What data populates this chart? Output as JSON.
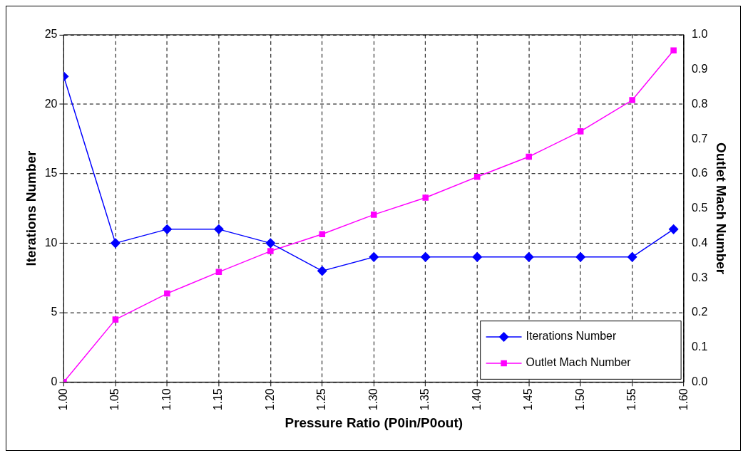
{
  "chart_data": {
    "type": "line",
    "xlabel": "Pressure Ratio (P0in/P0out)",
    "ylabel": "Iterations Number",
    "y2label": "Outlet Mach Number",
    "x": [
      1.0,
      1.05,
      1.1,
      1.15,
      1.2,
      1.25,
      1.3,
      1.35,
      1.4,
      1.45,
      1.5,
      1.55,
      1.59
    ],
    "series": [
      {
        "name": "Iterations Number",
        "color": "#0000ff",
        "marker": "diamond",
        "values": [
          22,
          10,
          11,
          11,
          10,
          8,
          9,
          9,
          9,
          9,
          9,
          9,
          11
        ]
      },
      {
        "name": "Outlet Mach Number",
        "color": "#ff00ff",
        "marker": "square",
        "axis": "y2",
        "values": [
          0,
          0.18,
          0.255,
          0.317,
          0.377,
          0.426,
          0.482,
          0.531,
          0.591,
          0.649,
          0.722,
          0.812,
          0.955
        ]
      }
    ],
    "xlim": [
      1.0,
      1.6
    ],
    "xticks": [
      {
        "value": 1.0,
        "label": "1.00"
      },
      {
        "value": 1.05,
        "label": "1.05"
      },
      {
        "value": 1.1,
        "label": "1.10"
      },
      {
        "value": 1.15,
        "label": "1.15"
      },
      {
        "value": 1.2,
        "label": "1.20"
      },
      {
        "value": 1.25,
        "label": "1.25"
      },
      {
        "value": 1.3,
        "label": "1.30"
      },
      {
        "value": 1.35,
        "label": "1.35"
      },
      {
        "value": 1.4,
        "label": "1.40"
      },
      {
        "value": 1.45,
        "label": "1.45"
      },
      {
        "value": 1.5,
        "label": "1.50"
      },
      {
        "value": 1.55,
        "label": "1.55"
      },
      {
        "value": 1.6,
        "label": "1.60"
      }
    ],
    "ylim": [
      0,
      25
    ],
    "yticks": [
      0,
      5,
      10,
      15,
      20,
      25
    ],
    "y2lim": [
      0,
      1
    ],
    "y2ticks": [
      {
        "value": 0,
        "label": "0.0"
      },
      {
        "value": 0.1,
        "label": "0.1"
      },
      {
        "value": 0.2,
        "label": "0.2"
      },
      {
        "value": 0.3,
        "label": "0.3"
      },
      {
        "value": 0.4,
        "label": "0.4"
      },
      {
        "value": 0.5,
        "label": "0.5"
      },
      {
        "value": 0.6,
        "label": "0.6"
      },
      {
        "value": 0.7,
        "label": "0.7"
      },
      {
        "value": 0.8,
        "label": "0.8"
      },
      {
        "value": 0.9,
        "label": "0.9"
      },
      {
        "value": 1,
        "label": "1.0"
      }
    ],
    "grid": true,
    "legend": "bottom right",
    "line_style": "solid"
  }
}
